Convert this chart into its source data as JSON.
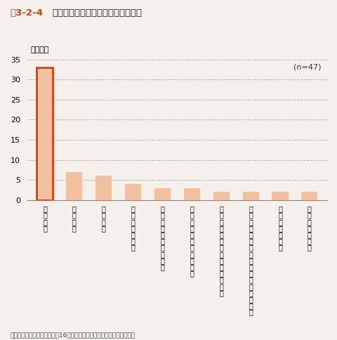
{
  "title_fig": "図3-2-4",
  "title_text": "木質バイオマス発電を断念した要因",
  "ylabel": "（件数）",
  "n_label": "(n=47)",
  "background_color": "#f5f0eb",
  "bar_color": "#f0c0a0",
  "first_bar_edge_color": "#d04010",
  "ylim": [
    0,
    35
  ],
  "yticks": [
    0,
    5,
    10,
    15,
    20,
    25,
    30,
    35
  ],
  "categories": [
    "原\n料\n調\n達",
    "立\n地\n場\n所",
    "資\n金\n調\n達",
    "地\n域\nの\n合\n意\n形\n成",
    "各\n種\n助\n成\n制\n度\nの\n非\n採\n択",
    "初\n期\nコ\nス\nト\n・\n運\n転\nコ\nス\nト",
    "事\n業\n主\n体\nお\nよ\nび\n山\n側\nの\n知\n識\n不\n足",
    "他\n県\nや\n他\n再\nエ\nネ\nと\n比\n較\nし\nて\nの\n総\n合\n評\n価",
    "適\n用\n可\n能\nな\n技\n術",
    "原\n料\n品\n質\nの\n問\n題"
  ],
  "values": [
    33,
    7,
    6,
    4,
    3,
    3,
    2,
    2,
    2,
    2
  ],
  "source_text": "資料：資源エネルギー庁「第16回調達価格等算定委員会資料」より作成"
}
